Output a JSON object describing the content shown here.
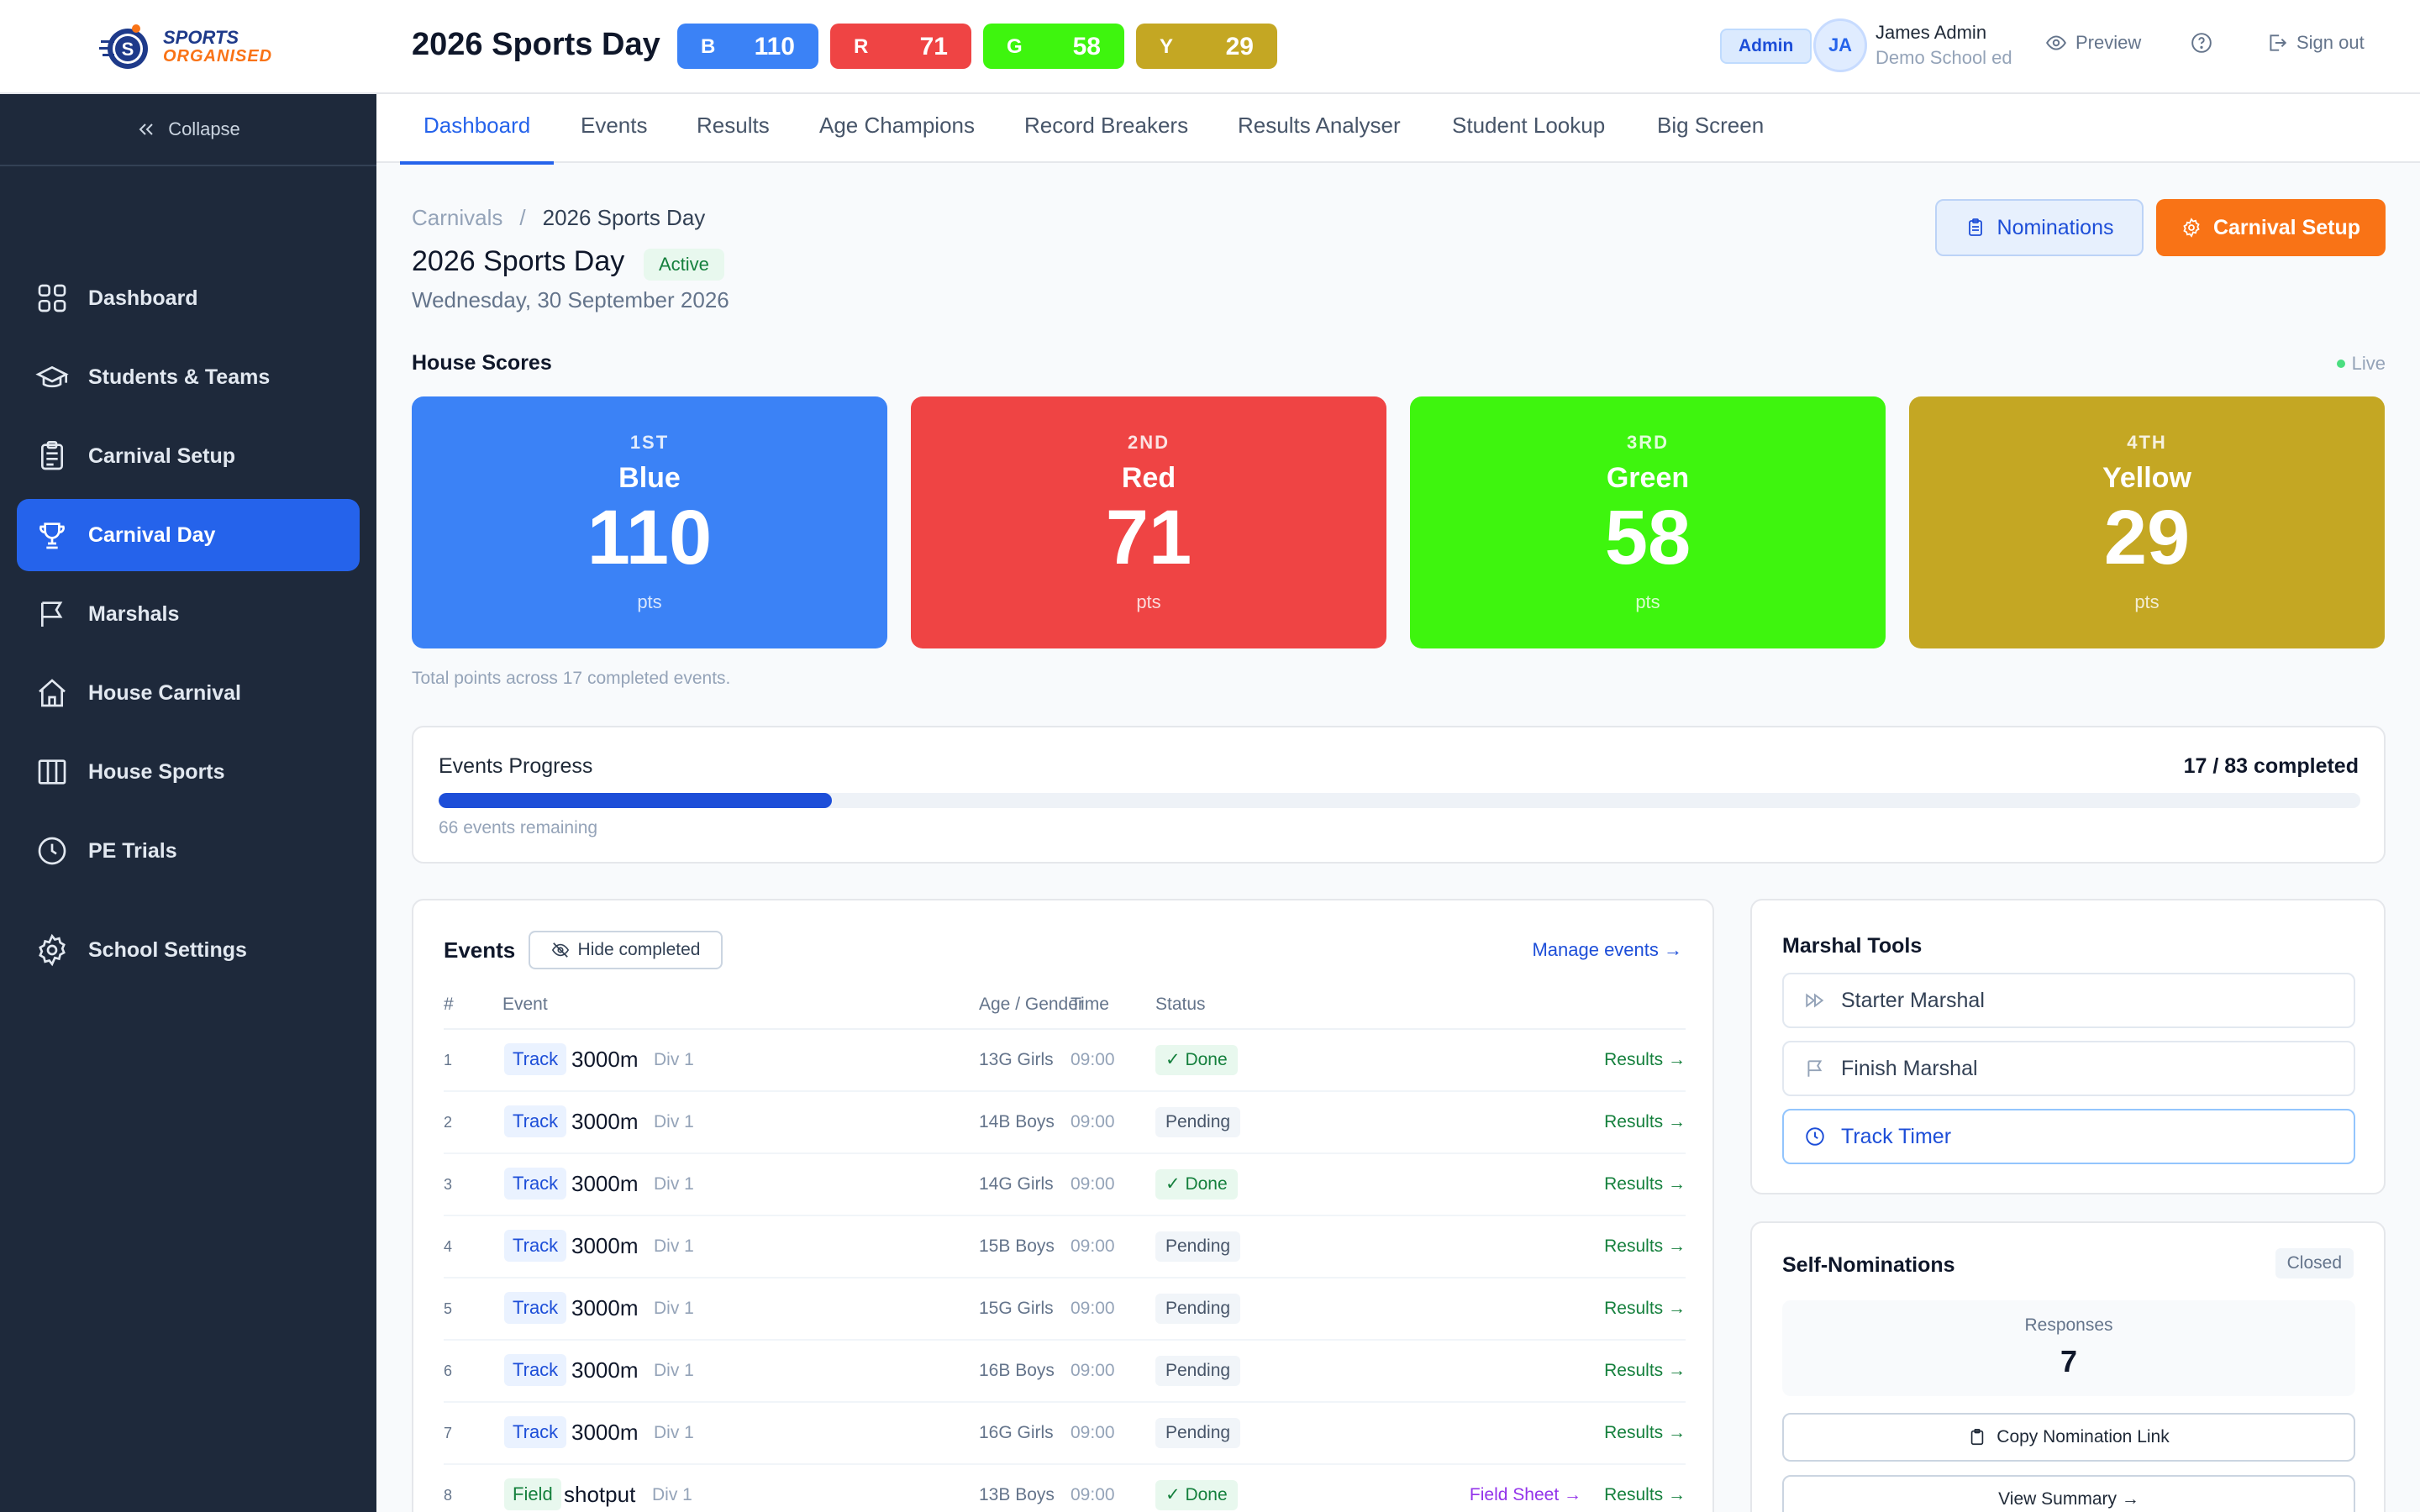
{
  "brand": {
    "line1": "SPORTS",
    "line2": "ORGANISED",
    "mark_letter": "S"
  },
  "carnival_title": "2026 Sports Day",
  "house_pills": [
    {
      "letter": "B",
      "value": "110",
      "color": "#3b82f6"
    },
    {
      "letter": "R",
      "value": "71",
      "color": "#ef4444"
    },
    {
      "letter": "G",
      "value": "58",
      "color": "#3ef50e"
    },
    {
      "letter": "Y",
      "value": "29",
      "color": "#c4a723"
    }
  ],
  "user": {
    "role": "Admin",
    "initials": "JA",
    "name": "James Admin",
    "school": "Demo School ed"
  },
  "top_links": {
    "preview": "Preview",
    "sign_out": "Sign out"
  },
  "sidebar": {
    "collapse": "Collapse",
    "items": [
      {
        "label": "Dashboard",
        "icon": "grid-icon"
      },
      {
        "label": "Students & Teams",
        "icon": "graduation-cap-icon"
      },
      {
        "label": "Carnival Setup",
        "icon": "clipboard-icon"
      },
      {
        "label": "Carnival Day",
        "icon": "trophy-icon",
        "active": true
      },
      {
        "label": "Marshals",
        "icon": "flag-icon"
      },
      {
        "label": "House Carnival",
        "icon": "home-icon"
      },
      {
        "label": "House Sports",
        "icon": "columns-icon"
      },
      {
        "label": "PE Trials",
        "icon": "clock-icon"
      },
      {
        "label": "School Settings",
        "icon": "gear-icon"
      }
    ]
  },
  "tabs": [
    "Dashboard",
    "Events",
    "Results",
    "Age Champions",
    "Record Breakers",
    "Results Analyser",
    "Student Lookup",
    "Big Screen"
  ],
  "breadcrumb": {
    "parent": "Carnivals",
    "separator": "/",
    "current": "2026 Sports Day"
  },
  "page": {
    "title": "2026 Sports Day",
    "status": "Active",
    "date": "Wednesday, 30 September 2026"
  },
  "actions": {
    "nominations": "Nominations",
    "carnival_setup": "Carnival Setup"
  },
  "house_scores": {
    "heading": "House Scores",
    "live": "Live",
    "cards": [
      {
        "rank": "1ST",
        "name": "Blue",
        "points": "110",
        "unit": "pts",
        "color": "#3b82f6"
      },
      {
        "rank": "2ND",
        "name": "Red",
        "points": "71",
        "unit": "pts",
        "color": "#ef4444"
      },
      {
        "rank": "3RD",
        "name": "Green",
        "points": "58",
        "unit": "pts",
        "color": "#3ef50e"
      },
      {
        "rank": "4TH",
        "name": "Yellow",
        "points": "29",
        "unit": "pts",
        "color": "#c4a723"
      }
    ],
    "note": "Total points across 17 completed events."
  },
  "progress": {
    "title": "Events Progress",
    "count": "17 / 83 completed",
    "completed": 17,
    "total": 83,
    "remaining": "66 events remaining"
  },
  "events": {
    "title": "Events",
    "hide_completed": "Hide completed",
    "manage": "Manage events →",
    "columns": {
      "num": "#",
      "event": "Event",
      "age": "Age / Gender",
      "time": "Time",
      "status": "Status"
    },
    "rows": [
      {
        "num": "1",
        "type": "Track",
        "name": "3000m",
        "div": "Div 1",
        "age": "13G Girls",
        "time": "09:00",
        "status": "Done",
        "results": "Results →"
      },
      {
        "num": "2",
        "type": "Track",
        "name": "3000m",
        "div": "Div 1",
        "age": "14B Boys",
        "time": "09:00",
        "status": "Pending",
        "results": "Results →"
      },
      {
        "num": "3",
        "type": "Track",
        "name": "3000m",
        "div": "Div 1",
        "age": "14G Girls",
        "time": "09:00",
        "status": "Done",
        "results": "Results →"
      },
      {
        "num": "4",
        "type": "Track",
        "name": "3000m",
        "div": "Div 1",
        "age": "15B Boys",
        "time": "09:00",
        "status": "Pending",
        "results": "Results →"
      },
      {
        "num": "5",
        "type": "Track",
        "name": "3000m",
        "div": "Div 1",
        "age": "15G Girls",
        "time": "09:00",
        "status": "Pending",
        "results": "Results →"
      },
      {
        "num": "6",
        "type": "Track",
        "name": "3000m",
        "div": "Div 1",
        "age": "16B Boys",
        "time": "09:00",
        "status": "Pending",
        "results": "Results →"
      },
      {
        "num": "7",
        "type": "Track",
        "name": "3000m",
        "div": "Div 1",
        "age": "16G Girls",
        "time": "09:00",
        "status": "Pending",
        "results": "Results →"
      },
      {
        "num": "8",
        "type": "Field",
        "name": "shotput",
        "div": "Div 1",
        "age": "13B Boys",
        "time": "09:00",
        "status": "Done",
        "field_sheet": "Field Sheet →",
        "results": "Results →"
      }
    ]
  },
  "marshal_tools": {
    "title": "Marshal Tools",
    "starter": "Starter Marshal",
    "finish": "Finish Marshal",
    "timer": "Track Timer"
  },
  "self_nominations": {
    "title": "Self-Nominations",
    "status": "Closed",
    "responses_label": "Responses",
    "responses": "7",
    "copy_link": "Copy Nomination Link",
    "view_summary": "View Summary →"
  }
}
